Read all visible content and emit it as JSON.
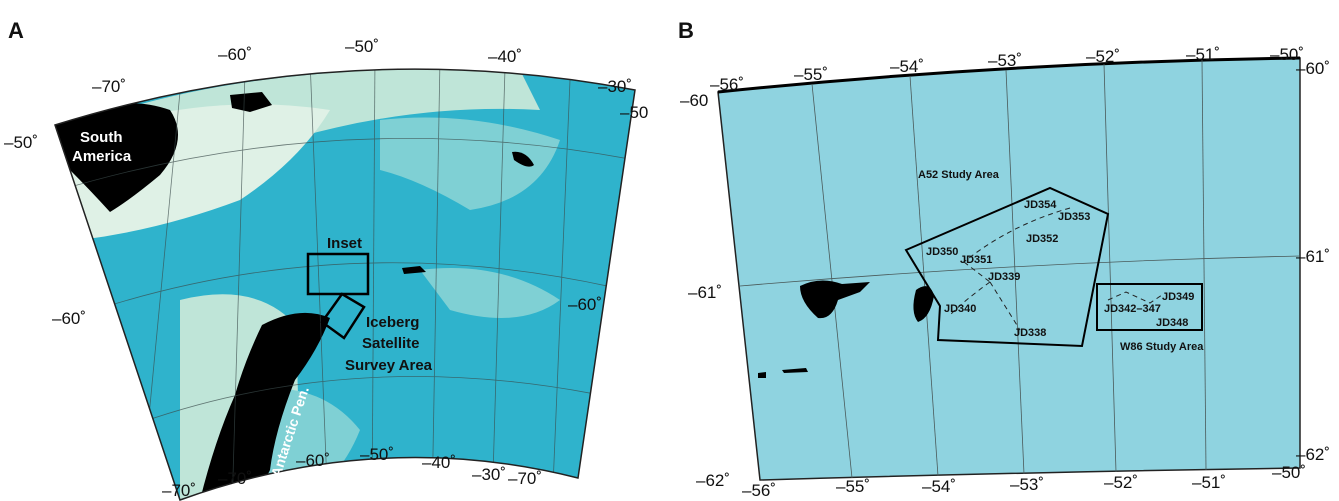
{
  "panel_a": {
    "letter": "A",
    "labels": {
      "south_america": [
        "South",
        "America"
      ],
      "inset": "Inset",
      "iceberg": [
        "Iceberg",
        "Satellite",
        "Survey Area"
      ],
      "antarctic": "Antarctic Pen."
    },
    "ticks": {
      "top": [
        "–70˚",
        "–60˚",
        "–50˚",
        "–40˚",
        "–30˚"
      ],
      "bottom": [
        "–70˚",
        "–70˚",
        "–60˚",
        "–50˚",
        "–40˚",
        "–30˚"
      ],
      "left": [
        "–50˚",
        "–60˚",
        "–70˚"
      ],
      "right": [
        "–50",
        "–60˚",
        "–70˚"
      ]
    },
    "colors": {
      "ocean": "#2fb3cc",
      "deep": "#1ea5c3",
      "shelf": "#7fd0d4",
      "land": "#000000",
      "ice": "#dff1e6"
    }
  },
  "panel_b": {
    "letter": "B",
    "ticks": {
      "top": [
        "–56˚",
        "–55˚",
        "–54˚",
        "–53˚",
        "–52˚",
        "–51˚",
        "–50˚"
      ],
      "bottom": [
        "–56˚",
        "–55˚",
        "–54˚",
        "–53˚",
        "–52˚",
        "–51˚",
        "–50˚"
      ],
      "left": [
        "–60",
        "–61˚",
        "–62˚"
      ],
      "right": [
        "–60˚",
        "–61˚",
        "–62˚"
      ]
    },
    "study_areas": {
      "a52": "A52 Study Area",
      "w86": "W86 Study Area"
    },
    "jd_labels": {
      "jd354": "JD354",
      "jd353": "JD353",
      "jd352": "JD352",
      "jd350": "JD350",
      "jd351": "JD351",
      "jd339": "JD339",
      "jd340": "JD340",
      "jd338": "JD338",
      "jd349": "JD349",
      "jd342": "JD342–347",
      "jd348": "JD348"
    },
    "colors": {
      "ocean": "#8fd3e0",
      "land": "#000000"
    }
  }
}
